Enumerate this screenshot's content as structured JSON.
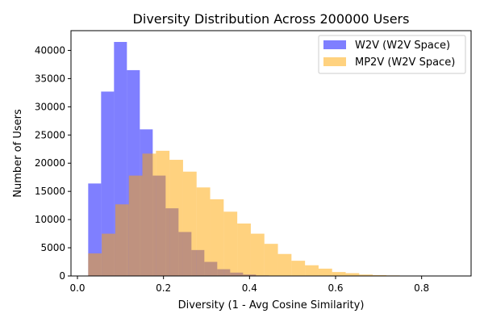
{
  "chart_data": {
    "type": "histogram",
    "title": "Diversity Distribution Across 200000 Users",
    "xlabel": "Diversity (1 - Avg Cosine Similarity)",
    "ylabel": "Number of Users",
    "xlim": [
      -0.015,
      0.915
    ],
    "ylim": [
      0,
      43500
    ],
    "x_ticks": [
      0.0,
      0.2,
      0.4,
      0.6,
      0.8
    ],
    "x_tick_labels": [
      "0.0",
      "0.2",
      "0.4",
      "0.6",
      "0.8"
    ],
    "y_ticks": [
      0,
      5000,
      10000,
      15000,
      20000,
      25000,
      30000,
      35000,
      40000
    ],
    "y_tick_labels": [
      "0",
      "5000",
      "10000",
      "15000",
      "20000",
      "25000",
      "30000",
      "35000",
      "40000"
    ],
    "grid": false,
    "legend_position": "upper right",
    "series": [
      {
        "name": "W2V (W2V Space)",
        "color": "#0000ff",
        "alpha": 0.5,
        "bin_edges": [
          0.025,
          0.055,
          0.085,
          0.115,
          0.145,
          0.175,
          0.205,
          0.235,
          0.265,
          0.295,
          0.325,
          0.355,
          0.385,
          0.415,
          0.445,
          0.475
        ],
        "counts": [
          16400,
          32700,
          41500,
          36500,
          26000,
          17800,
          12000,
          7800,
          4600,
          2500,
          1200,
          600,
          250,
          100,
          30
        ]
      },
      {
        "name": "MP2V (W2V Space)",
        "color": "#ffa500",
        "alpha": 0.5,
        "bin_edges": [
          0.025,
          0.0565,
          0.088,
          0.1195,
          0.151,
          0.1825,
          0.214,
          0.2455,
          0.277,
          0.3085,
          0.34,
          0.3715,
          0.403,
          0.4345,
          0.466,
          0.4975,
          0.529,
          0.5605,
          0.592,
          0.6235,
          0.655,
          0.6865,
          0.718,
          0.7495,
          0.781,
          0.8125,
          0.844,
          0.8755
        ],
        "counts": [
          4000,
          7500,
          12700,
          17800,
          21700,
          22200,
          20600,
          18500,
          15700,
          13600,
          11400,
          9300,
          7500,
          5700,
          3900,
          2700,
          1900,
          1300,
          700,
          500,
          250,
          150,
          100,
          50,
          30,
          10,
          5
        ]
      }
    ]
  }
}
